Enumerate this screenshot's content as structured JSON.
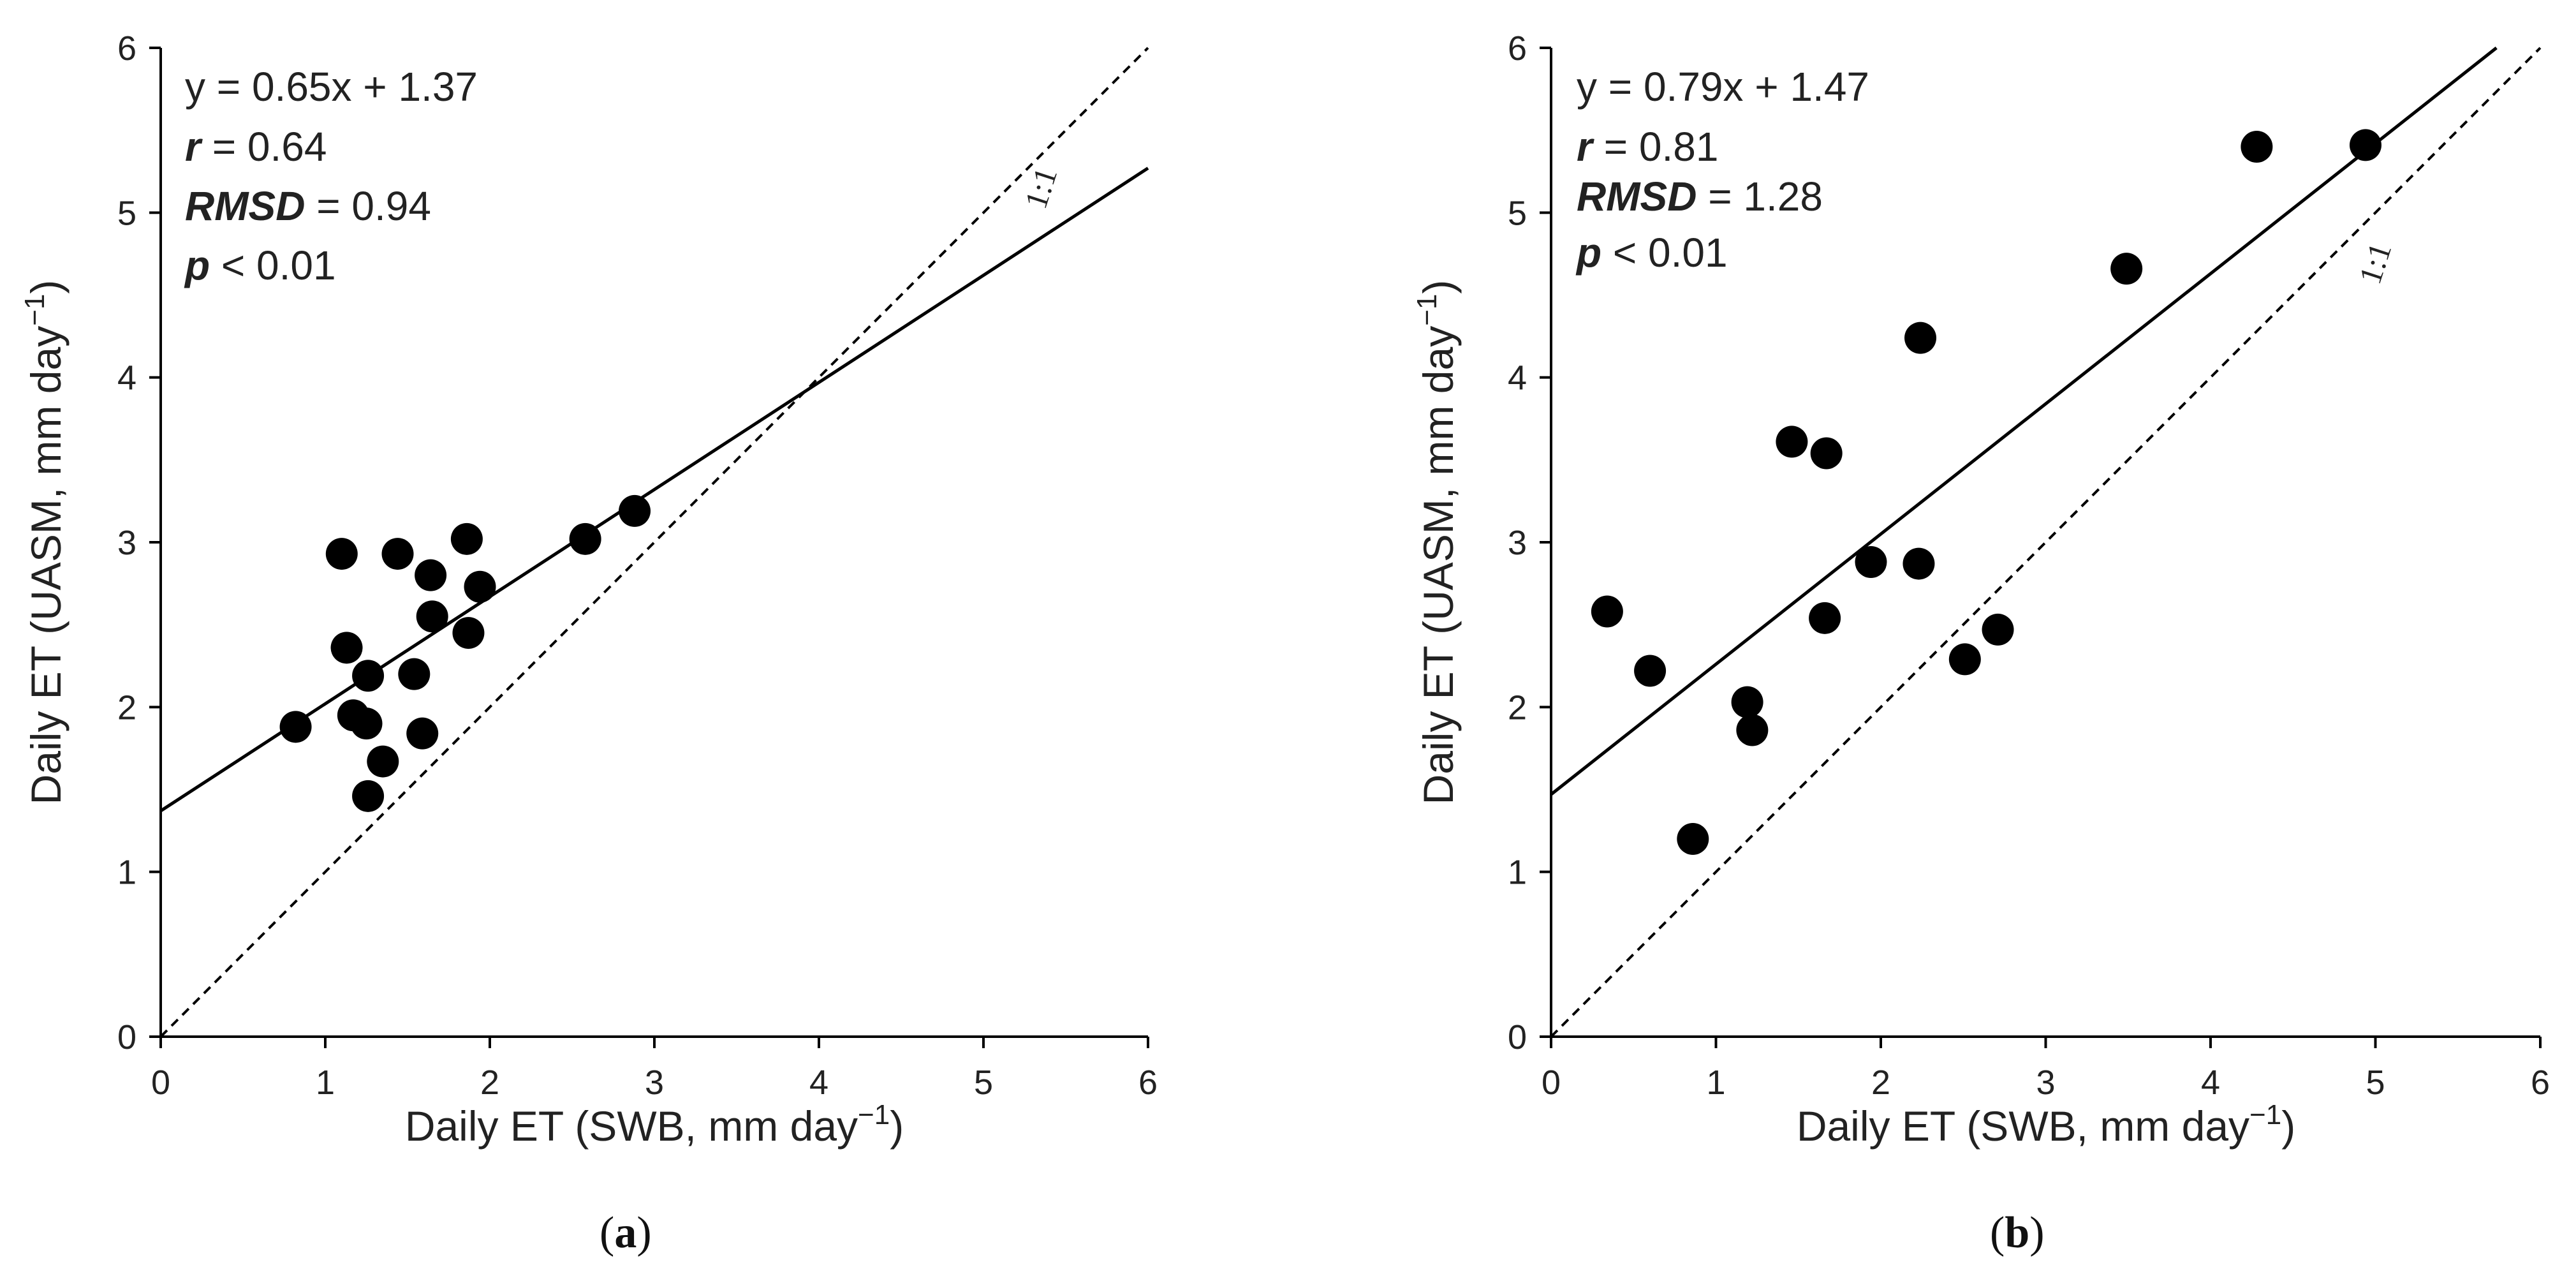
{
  "chart_data": [
    {
      "type": "scatter",
      "panel": "a",
      "xlabel_main": "Daily ET (SWB, mm day",
      "xlabel_sup": "−1",
      "xlabel_end": ")",
      "ylabel_main": "Daily ET (UASM, mm day",
      "ylabel_sup": "−1",
      "ylabel_end": ")",
      "xlim": [
        0,
        6
      ],
      "ylim": [
        0,
        6
      ],
      "xticks": [
        "0",
        "1",
        "2",
        "3",
        "4",
        "5",
        "6"
      ],
      "yticks": [
        "0",
        "1",
        "2",
        "3",
        "4",
        "5",
        "6"
      ],
      "equation": "y = 0.65x + 1.37",
      "r_label": "r",
      "r_value": " = 0.64",
      "rmsd_label": "RMSD",
      "rmsd_value": " = 0.94",
      "p_label": "p",
      "p_value": " < 0.01",
      "one_to_one_label": "1:1",
      "fit": {
        "slope": 0.65,
        "intercept": 1.37
      },
      "points": [
        [
          0.82,
          1.88
        ],
        [
          1.1,
          2.93
        ],
        [
          1.13,
          2.36
        ],
        [
          1.17,
          1.95
        ],
        [
          1.25,
          1.9
        ],
        [
          1.26,
          2.19
        ],
        [
          1.26,
          1.46
        ],
        [
          1.35,
          1.67
        ],
        [
          1.44,
          2.93
        ],
        [
          1.54,
          2.2
        ],
        [
          1.59,
          1.84
        ],
        [
          1.64,
          2.8
        ],
        [
          1.65,
          2.55
        ],
        [
          1.86,
          3.02
        ],
        [
          1.87,
          2.45
        ],
        [
          1.94,
          2.73
        ],
        [
          2.58,
          3.02
        ],
        [
          2.88,
          3.19
        ]
      ]
    },
    {
      "type": "scatter",
      "panel": "b",
      "xlabel_main": "Daily ET (SWB, mm day",
      "xlabel_sup": "−1",
      "xlabel_end": ")",
      "ylabel_main": "Daily ET (UASM, mm day",
      "ylabel_sup": "−1",
      "ylabel_end": ")",
      "xlim": [
        0,
        6
      ],
      "ylim": [
        0,
        6
      ],
      "xticks": [
        "0",
        "1",
        "2",
        "3",
        "4",
        "5",
        "6"
      ],
      "yticks": [
        "0",
        "1",
        "2",
        "3",
        "4",
        "5",
        "6"
      ],
      "equation": "y = 0.79x + 1.47",
      "r_label": "r",
      "r_value": " = 0.81",
      "rmsd_label": "RMSD",
      "rmsd_value": " = 1.28",
      "p_label": "p",
      "p_value": " < 0.01",
      "one_to_one_label": "1:1",
      "fit": {
        "slope": 0.79,
        "intercept": 1.47
      },
      "points": [
        [
          0.34,
          2.58
        ],
        [
          0.6,
          2.22
        ],
        [
          0.86,
          1.2
        ],
        [
          1.19,
          2.03
        ],
        [
          1.22,
          1.86
        ],
        [
          1.46,
          3.61
        ],
        [
          1.66,
          2.54
        ],
        [
          1.67,
          3.54
        ],
        [
          1.94,
          2.88
        ],
        [
          2.23,
          2.87
        ],
        [
          2.24,
          4.24
        ],
        [
          2.51,
          2.29
        ],
        [
          2.71,
          2.47
        ],
        [
          3.49,
          4.66
        ],
        [
          4.28,
          5.4
        ],
        [
          4.94,
          5.41
        ]
      ]
    }
  ]
}
